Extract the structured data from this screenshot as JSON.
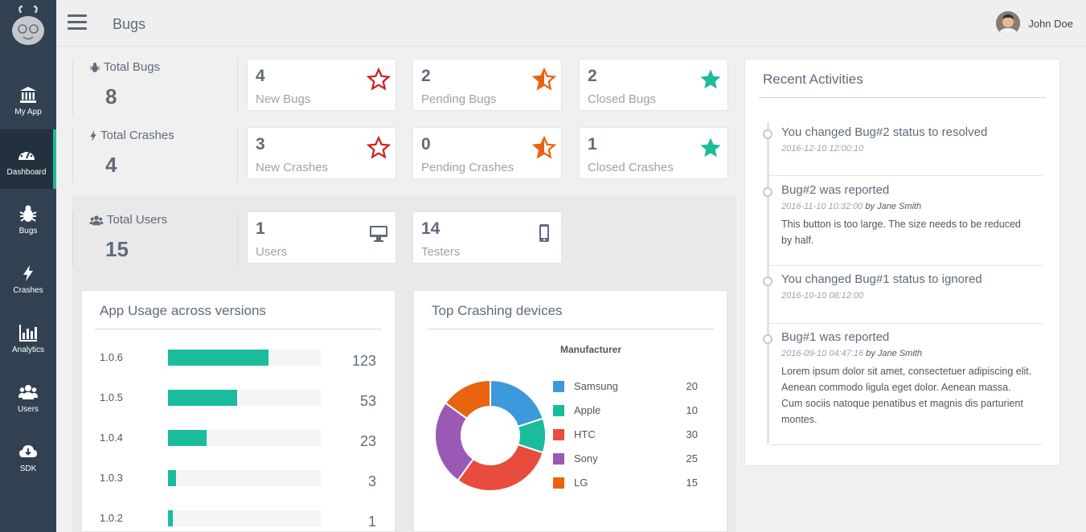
{
  "sidebar": {
    "items": [
      {
        "label": "My App",
        "icon": "bank-icon"
      },
      {
        "label": "Dashboard",
        "icon": "dashboard-icon",
        "active": true
      },
      {
        "label": "Bugs",
        "icon": "bug-icon"
      },
      {
        "label": "Crashes",
        "icon": "bolt-icon"
      },
      {
        "label": "Analytics",
        "icon": "bar-chart-icon"
      },
      {
        "label": "Users",
        "icon": "users-icon"
      },
      {
        "label": "SDK",
        "icon": "cloud-download-icon"
      }
    ]
  },
  "header": {
    "title": "Bugs",
    "user_name": "John Doe"
  },
  "stats": {
    "bugs": {
      "label": "Total Bugs",
      "total": "8",
      "new": "4",
      "new_label": "New Bugs",
      "pending": "2",
      "pending_label": "Pending Bugs",
      "closed": "2",
      "closed_label": "Closed Bugs"
    },
    "crashes": {
      "label": "Total Crashes",
      "total": "4",
      "new": "3",
      "new_label": "New Crashes",
      "pending": "0",
      "pending_label": "Pending Crashes",
      "closed": "1",
      "closed_label": "Closed Crashes"
    },
    "users": {
      "label": "Total Users",
      "total": "15",
      "users": "1",
      "users_label": "Users",
      "testers": "14",
      "testers_label": "Testers"
    }
  },
  "usage": {
    "title": "App Usage across versions",
    "rows": [
      {
        "version": "1.0.6",
        "value": "123",
        "fraction": 0.66
      },
      {
        "version": "1.0.5",
        "value": "53",
        "fraction": 0.45
      },
      {
        "version": "1.0.4",
        "value": "23",
        "fraction": 0.25
      },
      {
        "version": "1.0.3",
        "value": "3",
        "fraction": 0.05
      },
      {
        "version": "1.0.2",
        "value": "1",
        "fraction": 0.03
      }
    ]
  },
  "crashing": {
    "title": "Top Crashing devices",
    "legend_title": "Manufacturer"
  },
  "chart_data": {
    "type": "pie",
    "title": "Top Crashing devices",
    "legend_title": "Manufacturer",
    "categories": [
      "Samsung",
      "Apple",
      "HTC",
      "Sony",
      "LG"
    ],
    "values": [
      20,
      10,
      30,
      25,
      15
    ],
    "colors": [
      "#3c9adc",
      "#1abc9c",
      "#e74c3c",
      "#9b59b6",
      "#e8640f"
    ],
    "donut": true,
    "legend": "right"
  },
  "activities": {
    "title": "Recent Activities",
    "items": [
      {
        "title": "You changed Bug#2 status to resolved",
        "date": "2016-12-10 12:00:10",
        "by": "",
        "author": "",
        "body": ""
      },
      {
        "title": "Bug#2 was reported",
        "date": "2016-11-10 10:32:00",
        "by": "by",
        "author": "Jane Smith",
        "body": "This button is too large. The size needs to be reduced by half."
      },
      {
        "title": "You changed Bug#1 status to ignored",
        "date": "2016-10-10 08:12:00",
        "by": "",
        "author": "",
        "body": ""
      },
      {
        "title": "Bug#1 was reported",
        "date": "2016-09-10 04:47:16",
        "by": "by",
        "author": "Jane Smith",
        "body": "Lorem ipsum dolor sit amet, consectetuer adipiscing elit. Aenean commodo ligula eget dolor. Aenean massa. Cum sociis natoque penatibus et magnis dis parturient montes."
      }
    ]
  },
  "colors": {
    "sidebar": "#324152",
    "accent": "#1abc9c",
    "star_new": "#cc2222",
    "star_pending": "#e8640f",
    "star_closed": "#1abc9c"
  }
}
